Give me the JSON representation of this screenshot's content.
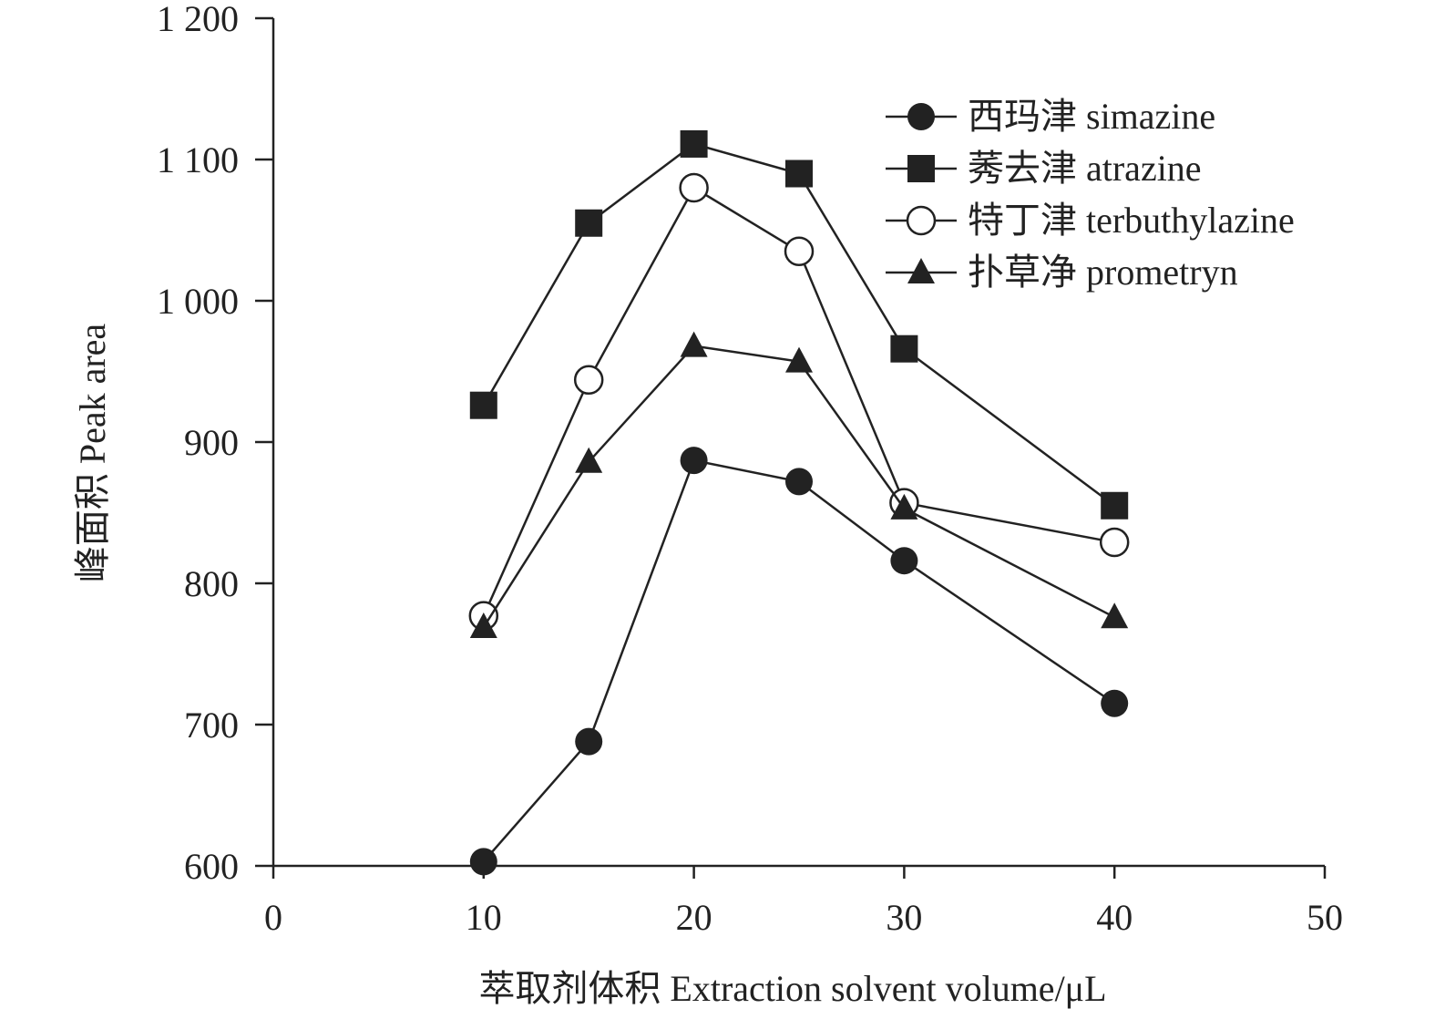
{
  "chart_data": {
    "type": "line",
    "title": "",
    "xlabel": "萃取剂体积 Extraction solvent volume/μL",
    "ylabel": "峰面积 Peak area",
    "xlim": [
      0,
      50
    ],
    "ylim": [
      600,
      1200
    ],
    "x_ticks": [
      0,
      10,
      20,
      30,
      40,
      50
    ],
    "x_tick_labels": [
      "0",
      "10",
      "20",
      "30",
      "40",
      "50"
    ],
    "y_ticks": [
      600,
      700,
      800,
      900,
      1000,
      1100,
      1200
    ],
    "y_tick_labels": [
      "600",
      "700",
      "800",
      "900",
      "1 000",
      "1 100",
      "1 200"
    ],
    "grid": false,
    "legend_position": "top-right",
    "x": [
      10,
      15,
      20,
      25,
      30,
      40
    ],
    "series": [
      {
        "name": "西玛津 simazine",
        "marker": "circle-filled",
        "values": [
          603,
          688,
          887,
          872,
          816,
          715
        ]
      },
      {
        "name": "莠去津 atrazine",
        "marker": "square-filled",
        "values": [
          926,
          1055,
          1111,
          1090,
          966,
          855
        ]
      },
      {
        "name": "特丁津 terbuthylazine",
        "marker": "circle-open",
        "values": [
          777,
          944,
          1080,
          1035,
          857,
          829
        ]
      },
      {
        "name": "扑草净 prometryn",
        "marker": "triangle-filled",
        "values": [
          769,
          886,
          968,
          957,
          853,
          776
        ]
      }
    ],
    "colors": {
      "line": "#222222",
      "marker_fill": "#222222",
      "open_fill": "#ffffff"
    }
  }
}
